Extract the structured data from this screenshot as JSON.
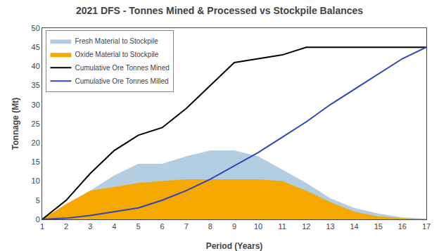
{
  "chart_data": {
    "type": "area",
    "title": "2021 DFS - Tonnes Mined & Processed vs Stockpile Balances",
    "xlabel": "Period (Years)",
    "ylabel": "Tonnage (Mt)",
    "x": [
      1,
      2,
      3,
      4,
      5,
      6,
      7,
      8,
      9,
      10,
      11,
      12,
      13,
      14,
      15,
      16,
      17
    ],
    "series": [
      {
        "name": "Fresh Material to Stockpile",
        "type": "area",
        "color": "#b3cde3",
        "values": [
          0,
          4.0,
          7.5,
          11.5,
          14.5,
          14.5,
          16.5,
          18.0,
          18.0,
          16.5,
          13.0,
          9.5,
          5.5,
          3.0,
          1.5,
          0.5,
          0.2
        ]
      },
      {
        "name": "Oxide Material to Stockpile",
        "type": "area",
        "color": "#f5a800",
        "values": [
          0,
          4.0,
          7.5,
          8.5,
          9.5,
          10.0,
          10.5,
          10.5,
          10.5,
          10.5,
          10.0,
          7.5,
          4.5,
          2.0,
          0.8,
          0.3,
          0.1
        ]
      },
      {
        "name": "Cumulative Ore Tonnes Mined",
        "type": "line",
        "color": "#000000",
        "values": [
          0,
          5,
          12,
          18,
          22,
          24,
          29,
          35,
          41,
          42,
          43,
          45,
          45,
          45,
          45,
          45,
          45
        ]
      },
      {
        "name": "Cumulative Ore Tonnes Milled",
        "type": "line",
        "color": "#3344bb",
        "values": [
          0,
          0.3,
          1.0,
          2.0,
          3.0,
          5.0,
          7.5,
          10.5,
          14.0,
          17.5,
          21.5,
          25.5,
          30.0,
          34.0,
          38.0,
          42.0,
          45.0
        ]
      }
    ],
    "stacked": false,
    "xlim": [
      1,
      17
    ],
    "ylim": [
      0,
      50
    ],
    "xticks": [
      1,
      2,
      3,
      4,
      5,
      6,
      7,
      8,
      9,
      10,
      11,
      12,
      13,
      14,
      15,
      16,
      17
    ],
    "yticks": [
      0,
      5,
      10,
      15,
      20,
      25,
      30,
      35,
      40,
      45,
      50
    ],
    "grid": false,
    "legend": "upper left"
  }
}
